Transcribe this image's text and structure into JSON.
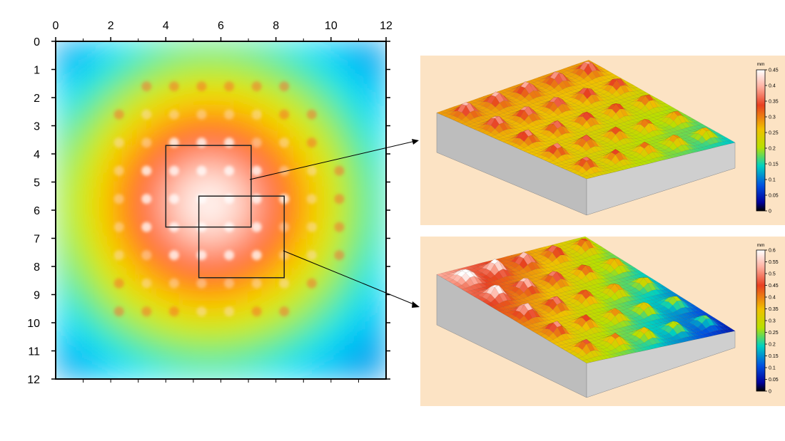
{
  "chart_data": [
    {
      "type": "heatmap",
      "title": "",
      "xlabel": "",
      "ylabel": "",
      "x_ticks": [
        "0",
        "2",
        "4",
        "6",
        "8",
        "10",
        "12"
      ],
      "y_ticks": [
        "0",
        "1",
        "2",
        "3",
        "4",
        "5",
        "6",
        "7",
        "8",
        "9",
        "10",
        "11",
        "12"
      ],
      "xlim": [
        0,
        12
      ],
      "ylim": [
        0,
        12
      ],
      "y_axis_inverted": true,
      "colormap": [
        "#0a2fd0",
        "#00e5ff",
        "#c8f000",
        "#ffd400",
        "#ff4a12",
        "#ffffff"
      ],
      "bump_pattern": {
        "columns": 11,
        "rows": 10,
        "pitch": 1.0
      },
      "zoom_regions": [
        {
          "name": "region-a",
          "x": [
            4,
            7.1
          ],
          "y": [
            3.7,
            6.6
          ],
          "target": "surface-top"
        },
        {
          "name": "region-b",
          "x": [
            5.2,
            8.3
          ],
          "y": [
            5.5,
            8.4
          ],
          "target": "surface-bottom"
        }
      ]
    },
    {
      "type": "surface-3d",
      "name": "surface-top",
      "colorbar": {
        "unit": "mm",
        "ticks": [
          "0.45",
          "0.4",
          "0.35",
          "0.3",
          "0.25",
          "0.2",
          "0.15",
          "0.1",
          "0.05",
          "0"
        ],
        "range": [
          0,
          0.45
        ]
      },
      "bumps": {
        "grid": 5,
        "height_range_mm": [
          0.2,
          0.45
        ]
      }
    },
    {
      "type": "surface-3d",
      "name": "surface-bottom",
      "colorbar": {
        "unit": "mm",
        "ticks": [
          "0.6",
          "0.55",
          "0.5",
          "0.45",
          "0.4",
          "0.35",
          "0.3",
          "0.25",
          "0.2",
          "0.15",
          "0.1",
          "0.05",
          "0"
        ],
        "range": [
          0,
          0.6
        ]
      },
      "bumps": {
        "grid": 5,
        "height_range_mm": [
          0.05,
          0.6
        ]
      }
    }
  ]
}
